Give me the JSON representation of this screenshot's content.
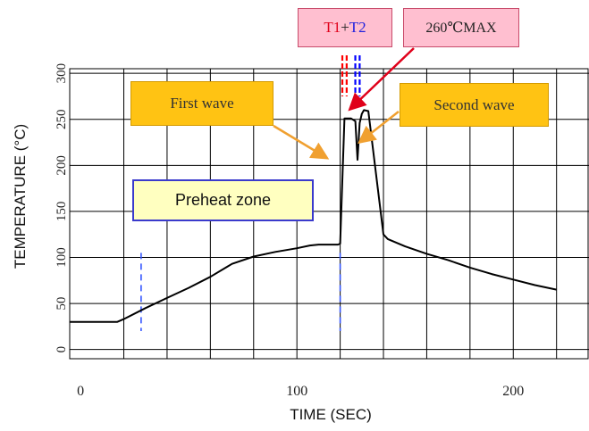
{
  "chart_data": {
    "type": "line",
    "title": "",
    "xlabel": "TIME (SEC)",
    "ylabel": "TEMPERATURE (°C)",
    "xlim": [
      -5,
      235
    ],
    "ylim": [
      -10,
      305
    ],
    "xticks": [
      0,
      100,
      200
    ],
    "xtick_labels": [
      "0",
      "100",
      "200"
    ],
    "yticks": [
      0,
      50,
      100,
      150,
      200,
      250,
      300
    ],
    "ytick_labels": [
      "0",
      "50",
      "100",
      "150",
      "200",
      "250",
      "300"
    ],
    "grid": true,
    "series": [
      {
        "name": "",
        "color": "#000000",
        "points": [
          [
            -5,
            30
          ],
          [
            17,
            30
          ],
          [
            20,
            33
          ],
          [
            30,
            45
          ],
          [
            40,
            56
          ],
          [
            50,
            67
          ],
          [
            60,
            79
          ],
          [
            70,
            93
          ],
          [
            80,
            101
          ],
          [
            90,
            106
          ],
          [
            100,
            110
          ],
          [
            106,
            113
          ],
          [
            110,
            114
          ],
          [
            119,
            114
          ],
          [
            120,
            115
          ],
          [
            122,
            251
          ],
          [
            125,
            251
          ],
          [
            127,
            248
          ],
          [
            128,
            206
          ],
          [
            129,
            246
          ],
          [
            130,
            256
          ],
          [
            131,
            260
          ],
          [
            133,
            259
          ],
          [
            140,
            125
          ],
          [
            142,
            120
          ],
          [
            150,
            112
          ],
          [
            160,
            104
          ],
          [
            170,
            97
          ],
          [
            180,
            89
          ],
          [
            190,
            82
          ],
          [
            200,
            76
          ],
          [
            210,
            70
          ],
          [
            220,
            65
          ]
        ]
      }
    ],
    "markers": {
      "dashed_blue_x": [
        28,
        120
      ],
      "t1_dashes_x": [
        121,
        123
      ],
      "t2_dashes_x": [
        127,
        129
      ],
      "color_t1": "#ff0000",
      "color_t2": "#0000ff"
    },
    "annotations": {
      "t1": "T1",
      "plus": "+",
      "t2": "T2",
      "peak": "260℃MAX",
      "first_wave": "First wave",
      "second_wave": "Second wave",
      "preheat": "Preheat zone"
    }
  },
  "colors": {
    "line": "#000000",
    "grid": "#000000",
    "label_pink": "#ffbfd0",
    "label_orange": "#ffc313",
    "label_yellow": "#ffffc0",
    "arrow_red": "#e0001a",
    "arrow_orange": "#f0a030"
  }
}
